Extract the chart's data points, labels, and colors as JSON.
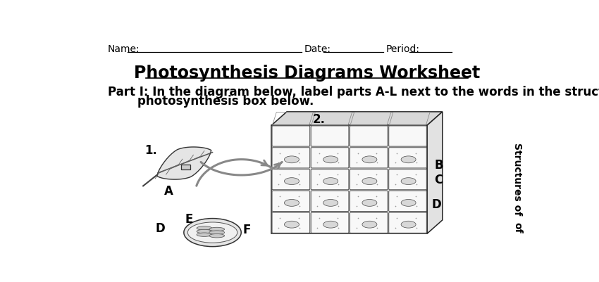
{
  "bg_color": "#ffffff",
  "header_name_label": "Name:",
  "header_date_label": "Date:",
  "header_period_label": "Period:",
  "title": "Photosynthesis Diagrams Worksheet",
  "part1_line1": "Part I: In the diagram below, label parts A-L next to the words in the structures of",
  "part1_line2": "photosynthesis box below.",
  "label_1": "1.",
  "label_2": "2.",
  "label_A": "A",
  "label_B": "B",
  "label_C": "C",
  "label_D": "D",
  "label_E": "E",
  "label_F": "F",
  "sidebar_text": "Structures of",
  "sidebar_text2": "of",
  "font_color": "#000000",
  "title_fontsize": 17,
  "header_fontsize": 10,
  "body_fontsize": 12,
  "label_fontsize": 12
}
